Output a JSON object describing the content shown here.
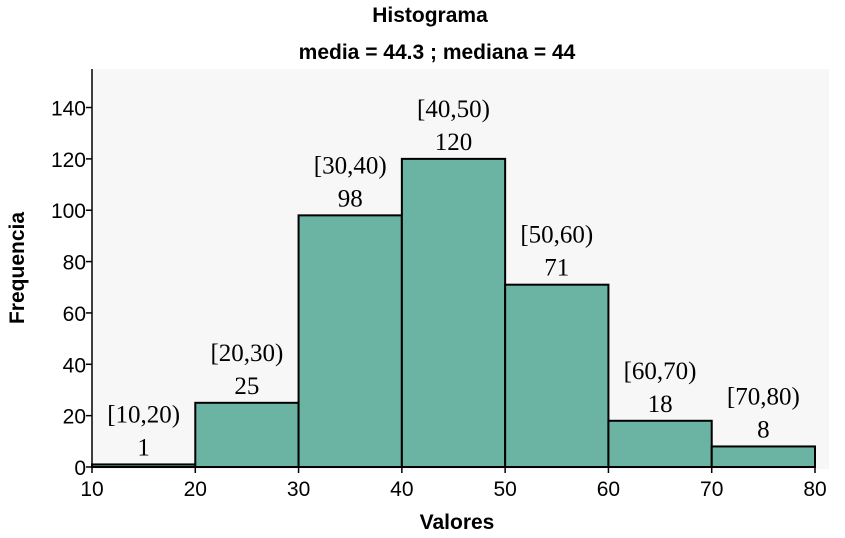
{
  "chart_data": {
    "type": "bar",
    "title": "Histograma",
    "subtitle": "media = 44.3 ; mediana = 44",
    "xlabel": "Valores",
    "ylabel": "Frequencia",
    "xlim": [
      10,
      80
    ],
    "ylim": [
      0,
      155
    ],
    "x_ticks": [
      10,
      20,
      30,
      40,
      50,
      60,
      70,
      80
    ],
    "y_ticks": [
      0,
      20,
      40,
      60,
      80,
      100,
      120,
      140
    ],
    "bins": [
      {
        "start": 10,
        "end": 20,
        "label": "[10,20)",
        "value": 1
      },
      {
        "start": 20,
        "end": 30,
        "label": "[20,30)",
        "value": 25
      },
      {
        "start": 30,
        "end": 40,
        "label": "[30,40)",
        "value": 98
      },
      {
        "start": 40,
        "end": 50,
        "label": "[40,50)",
        "value": 120
      },
      {
        "start": 50,
        "end": 60,
        "label": "[50,60)",
        "value": 71
      },
      {
        "start": 60,
        "end": 70,
        "label": "[60,70)",
        "value": 18
      },
      {
        "start": 70,
        "end": 80,
        "label": "[70,80)",
        "value": 8
      }
    ],
    "bar_color": "#6bb3a3",
    "edge_color": "#000000",
    "plot_background": "#ffffff",
    "grid": false
  }
}
